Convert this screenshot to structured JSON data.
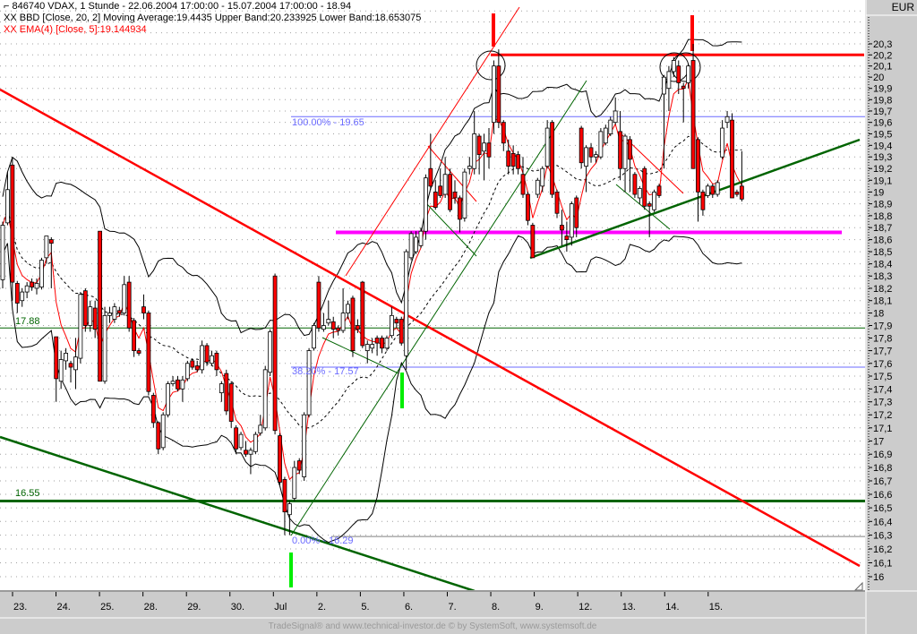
{
  "header": {
    "title_line": "846740  VDAX, 1 Stunde - 22.06.2004 17:00:00 - 15.07.2004 17:00:00 - 18.94",
    "bbd_line": "XX BBD [Close, 20, 2] Moving Average:19.4435 Upper Band:20.233925 Lower Band:18.653075",
    "ema_line": "XX EMA(4) [Close, 5]:19.144934",
    "title_icon": "pin-icon"
  },
  "currency": "EUR",
  "footer": "TradeSignal® and www.technical-investor.de © by  SystemSoft, www.systemsoft.de",
  "annotations": {
    "fib_100": "100.00% - 19.65",
    "fib_38": "38.20% - 17.57",
    "fib_0": "0.00% - 16.29",
    "level_upper": "17.88",
    "level_lower": "16.55"
  },
  "colors": {
    "up_candle": "#ffffff",
    "down_candle": "#ff0000",
    "ema": "#ff0000",
    "bands": "#000000",
    "resistance": "#ff0000",
    "support_magenta": "#ff00ff",
    "support_green": "#006400",
    "fibonacci": "#6b6bff",
    "marker_green": "#00ee00"
  },
  "chart_data": {
    "type": "candlestick",
    "instrument": "846740 VDAX",
    "interval": "1 Stunde",
    "y_scale": "log",
    "ylim": [
      16.0,
      20.3
    ],
    "y_ticks": [
      "20,3",
      "20,2",
      "20,1",
      "20",
      "19,9",
      "19,8",
      "19,7",
      "19,6",
      "19,5",
      "19,4",
      "19,3",
      "19,2",
      "19,1",
      "19",
      "18,9",
      "18,8",
      "18,7",
      "18,6",
      "18,5",
      "18,4",
      "18,3",
      "18,2",
      "18,1",
      "18",
      "17,9",
      "17,8",
      "17,7",
      "17,6",
      "17,5",
      "17,4",
      "17,3",
      "17,2",
      "17,1",
      "17",
      "16,9",
      "16,8",
      "16,7",
      "16,6",
      "16,5",
      "16,4",
      "16,3",
      "16,2",
      "16,1",
      "16"
    ],
    "x_ticks": [
      "23.",
      "24.",
      "25.",
      "28.",
      "29.",
      "30.",
      "Jul",
      "2.",
      "5.",
      "6.",
      "7.",
      "8.",
      "9.",
      "12.",
      "13.",
      "14.",
      "15."
    ],
    "grid": "horizontal dotted",
    "indicators": [
      "Bollinger Bands (Close, 20, 2)",
      "EMA(4) Close"
    ],
    "horizontal_levels": [
      {
        "value": 20.2,
        "color": "#ff0000"
      },
      {
        "value": 18.66,
        "color": "#ff00ff"
      },
      {
        "value": 17.88,
        "color": "#006400"
      },
      {
        "value": 16.55,
        "color": "#006400"
      },
      {
        "value": 19.65,
        "color": "#6b6bff"
      },
      {
        "value": 17.57,
        "color": "#6b6bff"
      },
      {
        "value": 16.29,
        "color": "#808080"
      }
    ],
    "ohlc": [
      [
        18.27,
        18.75,
        18.2,
        18.72
      ],
      [
        18.74,
        19.17,
        18.72,
        19.02
      ],
      [
        19.23,
        19.3,
        18.1,
        18.25
      ],
      [
        18.24,
        18.26,
        18.0,
        18.08
      ],
      [
        18.1,
        18.2,
        18.05,
        18.17
      ],
      [
        18.17,
        18.25,
        18.12,
        18.22
      ],
      [
        18.25,
        18.28,
        18.18,
        18.21
      ],
      [
        18.2,
        18.28,
        18.15,
        18.24
      ],
      [
        18.21,
        18.45,
        18.19,
        18.43
      ],
      [
        18.45,
        18.63,
        18.4,
        18.63
      ],
      [
        18.6,
        18.62,
        18.2,
        18.57
      ],
      [
        17.81,
        17.81,
        17.3,
        17.48
      ],
      [
        17.46,
        17.7,
        17.4,
        17.63
      ],
      [
        17.62,
        17.72,
        17.55,
        17.68
      ],
      [
        17.6,
        17.62,
        17.45,
        17.57
      ],
      [
        17.55,
        17.8,
        17.4,
        17.65
      ],
      [
        17.64,
        18.17,
        17.6,
        18.15
      ],
      [
        18.18,
        18.2,
        17.85,
        17.9
      ],
      [
        17.9,
        18.1,
        17.85,
        18.05
      ],
      [
        18.04,
        18.1,
        17.8,
        17.87
      ],
      [
        18.67,
        18.67,
        17.46,
        17.46
      ],
      [
        17.46,
        18.05,
        17.44,
        17.98
      ],
      [
        17.98,
        18.05,
        17.92,
        18.0
      ],
      [
        17.95,
        18.08,
        17.92,
        18.05
      ],
      [
        18.02,
        18.05,
        17.97,
        18.0
      ],
      [
        18.0,
        18.3,
        17.98,
        18.23
      ],
      [
        18.25,
        18.3,
        17.85,
        17.88
      ],
      [
        17.94,
        17.96,
        17.65,
        17.7
      ],
      [
        17.7,
        17.72,
        17.66,
        17.68
      ],
      [
        18.05,
        18.15,
        17.95,
        18.0
      ],
      [
        18.0,
        18.02,
        17.35,
        17.38
      ],
      [
        17.35,
        17.37,
        17.1,
        17.14
      ],
      [
        17.14,
        17.15,
        16.9,
        16.94
      ],
      [
        16.95,
        17.22,
        16.93,
        17.2
      ],
      [
        17.2,
        17.46,
        17.18,
        17.44
      ],
      [
        17.44,
        17.5,
        17.42,
        17.46
      ],
      [
        17.47,
        17.5,
        17.38,
        17.4
      ],
      [
        17.4,
        17.5,
        17.3,
        17.47
      ],
      [
        17.48,
        17.62,
        17.46,
        17.6
      ],
      [
        17.62,
        17.64,
        17.55,
        17.57
      ],
      [
        17.58,
        17.62,
        17.53,
        17.55
      ],
      [
        17.55,
        17.78,
        17.52,
        17.74
      ],
      [
        17.74,
        17.76,
        17.58,
        17.61
      ],
      [
        17.6,
        17.7,
        17.58,
        17.66
      ],
      [
        17.68,
        17.7,
        17.5,
        17.55
      ],
      [
        17.37,
        17.46,
        17.3,
        17.44
      ],
      [
        17.52,
        17.55,
        17.2,
        17.23
      ],
      [
        17.44,
        17.46,
        17.1,
        17.15
      ],
      [
        17.1,
        17.12,
        16.9,
        16.94
      ],
      [
        16.95,
        17.07,
        16.93,
        17.05
      ],
      [
        16.93,
        17.0,
        16.88,
        16.9
      ],
      [
        16.9,
        16.95,
        16.75,
        16.93
      ],
      [
        16.92,
        17.07,
        16.9,
        17.05
      ],
      [
        17.06,
        17.2,
        17.04,
        17.12
      ],
      [
        17.1,
        17.58,
        17.08,
        17.55
      ],
      [
        17.53,
        17.87,
        17.5,
        17.85
      ],
      [
        18.3,
        18.32,
        17.05,
        17.08
      ],
      [
        17.04,
        17.06,
        16.67,
        16.69
      ],
      [
        16.71,
        16.73,
        16.3,
        16.47
      ],
      [
        16.45,
        16.55,
        16.3,
        16.53
      ],
      [
        16.57,
        16.85,
        16.55,
        16.8
      ],
      [
        16.85,
        16.87,
        16.75,
        16.78
      ],
      [
        16.73,
        17.22,
        16.7,
        17.2
      ],
      [
        17.2,
        17.72,
        17.18,
        17.7
      ],
      [
        17.72,
        17.92,
        17.7,
        17.9
      ],
      [
        18.25,
        18.3,
        17.85,
        17.88
      ],
      [
        17.87,
        18.0,
        17.85,
        17.9
      ],
      [
        17.92,
        18.1,
        17.9,
        17.95
      ],
      [
        17.93,
        17.97,
        17.8,
        17.87
      ],
      [
        17.88,
        17.9,
        17.82,
        17.86
      ],
      [
        17.86,
        18.2,
        17.84,
        18.0
      ],
      [
        18.0,
        18.1,
        17.95,
        18.07
      ],
      [
        18.12,
        18.14,
        17.65,
        17.7
      ],
      [
        17.9,
        17.95,
        17.84,
        17.87
      ],
      [
        18.25,
        18.26,
        17.72,
        17.74
      ],
      [
        17.7,
        17.78,
        17.6,
        17.75
      ],
      [
        17.72,
        17.8,
        17.68,
        17.75
      ],
      [
        17.8,
        17.82,
        17.66,
        17.76
      ],
      [
        17.8,
        17.82,
        17.68,
        17.72
      ],
      [
        17.72,
        17.82,
        17.7,
        17.8
      ],
      [
        17.82,
        18.05,
        17.8,
        17.98
      ],
      [
        17.95,
        17.97,
        17.88,
        17.92
      ],
      [
        17.95,
        17.97,
        17.74,
        17.76
      ],
      [
        17.66,
        18.52,
        17.55,
        18.5
      ],
      [
        18.45,
        18.67,
        18.43,
        18.65
      ],
      [
        18.5,
        18.67,
        18.48,
        18.62
      ],
      [
        18.55,
        18.7,
        18.53,
        18.67
      ],
      [
        18.67,
        19.15,
        18.6,
        19.12
      ],
      [
        19.2,
        19.5,
        19.02,
        19.05
      ],
      [
        19.0,
        19.1,
        18.85,
        18.87
      ],
      [
        19.05,
        19.2,
        18.95,
        18.97
      ],
      [
        18.98,
        19.3,
        18.95,
        19.15
      ],
      [
        19.15,
        19.2,
        18.83,
        18.85
      ],
      [
        19.0,
        19.1,
        18.9,
        18.95
      ],
      [
        18.95,
        18.97,
        18.66,
        18.77
      ],
      [
        18.78,
        19.2,
        18.75,
        19.17
      ],
      [
        19.2,
        19.3,
        19.15,
        19.22
      ],
      [
        19.2,
        19.7,
        19.15,
        19.5
      ],
      [
        19.48,
        19.5,
        19.15,
        19.32
      ],
      [
        19.35,
        19.5,
        19.1,
        19.42
      ],
      [
        19.42,
        19.55,
        19.2,
        19.3
      ],
      [
        19.6,
        20.15,
        19.5,
        20.1
      ],
      [
        20.1,
        20.25,
        19.55,
        19.6
      ],
      [
        19.6,
        19.62,
        19.35,
        19.42
      ],
      [
        19.35,
        19.45,
        19.15,
        19.22
      ],
      [
        19.33,
        19.4,
        19.15,
        19.22
      ],
      [
        19.32,
        19.35,
        19.15,
        19.2
      ],
      [
        19.15,
        19.3,
        18.95,
        18.98
      ],
      [
        18.98,
        19.0,
        18.72,
        18.76
      ],
      [
        18.72,
        18.74,
        18.45,
        18.45
      ],
      [
        18.98,
        19.12,
        18.95,
        19.1
      ],
      [
        19.05,
        19.22,
        19.0,
        19.2
      ],
      [
        19.22,
        19.62,
        19.2,
        19.55
      ],
      [
        19.6,
        19.62,
        18.95,
        18.98
      ],
      [
        19.0,
        19.02,
        18.78,
        18.82
      ],
      [
        18.72,
        18.85,
        18.55,
        18.68
      ],
      [
        18.63,
        18.75,
        18.5,
        18.6
      ],
      [
        18.62,
        18.92,
        18.55,
        18.9
      ],
      [
        18.95,
        18.97,
        18.62,
        18.7
      ],
      [
        19.55,
        19.57,
        19.2,
        19.25
      ],
      [
        19.22,
        19.4,
        19.0,
        19.38
      ],
      [
        19.38,
        19.42,
        19.25,
        19.3
      ],
      [
        19.3,
        19.35,
        19.25,
        19.32
      ],
      [
        19.3,
        19.55,
        19.28,
        19.52
      ],
      [
        19.42,
        19.58,
        19.4,
        19.55
      ],
      [
        19.5,
        19.65,
        19.48,
        19.62
      ],
      [
        19.6,
        19.82,
        19.58,
        19.7
      ],
      [
        19.52,
        19.7,
        19.1,
        19.2
      ],
      [
        19.2,
        19.5,
        19.0,
        19.48
      ],
      [
        19.45,
        19.48,
        19.0,
        19.28
      ],
      [
        19.15,
        19.17,
        18.95,
        18.98
      ],
      [
        18.95,
        19.05,
        18.9,
        19.03
      ],
      [
        19.2,
        19.22,
        18.85,
        18.88
      ],
      [
        18.9,
        18.92,
        18.62,
        18.88
      ],
      [
        18.85,
        19.02,
        18.83,
        19.0
      ],
      [
        19.05,
        19.07,
        18.95,
        18.97
      ],
      [
        19.85,
        20.02,
        19.2,
        20.0
      ],
      [
        19.9,
        20.1,
        19.7,
        20.05
      ],
      [
        20.05,
        20.18,
        20.0,
        20.15
      ],
      [
        20.1,
        20.15,
        19.85,
        19.95
      ],
      [
        19.92,
        19.95,
        19.6,
        19.9
      ],
      [
        19.95,
        20.12,
        19.9,
        20.1
      ],
      [
        20.15,
        20.3,
        19.2,
        19.2
      ],
      [
        19.45,
        19.47,
        18.75,
        19.0
      ],
      [
        19.0,
        19.02,
        18.8,
        18.85
      ],
      [
        18.97,
        19.07,
        18.95,
        19.05
      ],
      [
        19.05,
        19.07,
        18.95,
        18.98
      ],
      [
        18.98,
        19.1,
        18.96,
        19.08
      ],
      [
        19.3,
        19.62,
        19.28,
        19.55
      ],
      [
        19.6,
        19.7,
        19.55,
        19.65
      ],
      [
        19.62,
        19.68,
        18.95,
        18.95
      ],
      [
        19.0,
        19.02,
        18.96,
        18.98
      ],
      [
        19.05,
        19.35,
        18.92,
        18.94
      ]
    ]
  }
}
